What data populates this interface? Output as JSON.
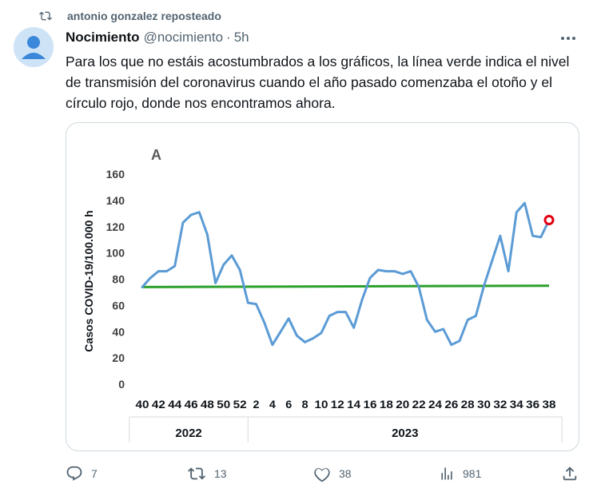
{
  "repost": {
    "label": "antonio gonzalez reposteado",
    "icon": "repost-icon"
  },
  "author": {
    "name": "Nocimiento",
    "handle": "@nocimiento",
    "separator": "·",
    "time": "5h"
  },
  "tweet_text": "Para los que no estáis acostumbrados a los gráficos, la línea verde indica el nivel de transmisión del coronavirus cuando el año pasado comenzaba el otoño y el círculo rojo, donde nos encontramos ahora.",
  "actions": {
    "replies": "7",
    "reposts": "13",
    "likes": "38",
    "views": "981"
  },
  "colors": {
    "line_blue": "#5b9bd5",
    "threshold_green": "#2ca02c",
    "marker_red": "#e3000f"
  },
  "chart_data": {
    "type": "line",
    "title": "A",
    "ylabel": "Casos COVID-19/100.000 h",
    "ylim": [
      0,
      160
    ],
    "yticks": [
      0,
      20,
      40,
      60,
      80,
      100,
      120,
      140,
      160
    ],
    "xtick_labels": [
      "40",
      "42",
      "44",
      "46",
      "48",
      "50",
      "52",
      "2",
      "4",
      "6",
      "8",
      "10",
      "12",
      "14",
      "16",
      "18",
      "20",
      "22",
      "24",
      "26",
      "28",
      "30",
      "32",
      "34",
      "36",
      "38"
    ],
    "year_groups": [
      {
        "label": "2022",
        "ticks": 7
      },
      {
        "label": "2023",
        "ticks": 19
      }
    ],
    "series": [
      {
        "name": "Casos",
        "values": [
          74,
          81,
          86,
          86,
          90,
          123,
          129,
          131,
          114,
          77,
          91,
          98,
          87,
          62,
          61,
          47,
          30,
          40,
          50,
          37,
          32,
          35,
          39,
          52,
          55,
          55,
          43,
          64,
          81,
          87,
          86,
          86,
          84,
          86,
          74,
          49,
          40,
          42,
          30,
          33,
          49,
          52,
          75,
          94,
          113,
          86,
          131,
          138,
          113,
          112,
          125
        ]
      }
    ],
    "threshold": {
      "name": "nivel otoño año pasado",
      "values": [
        74,
        75
      ]
    },
    "current_marker": {
      "label": "ahora",
      "index": 50,
      "value": 125
    }
  }
}
